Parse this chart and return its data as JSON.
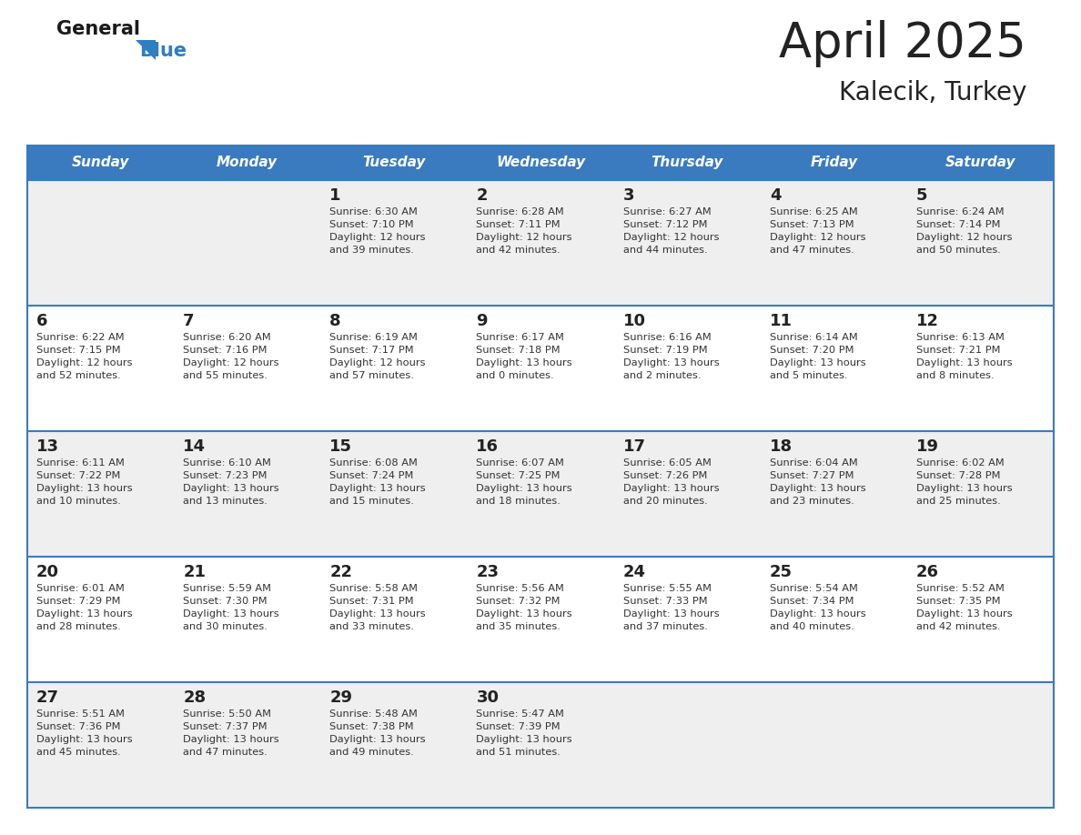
{
  "title": "April 2025",
  "subtitle": "Kalecik, Turkey",
  "header_bg": "#3a7bbf",
  "header_text": "#ffffff",
  "days_of_week": [
    "Sunday",
    "Monday",
    "Tuesday",
    "Wednesday",
    "Thursday",
    "Friday",
    "Saturday"
  ],
  "row_bg_odd": "#efefef",
  "row_bg_even": "#ffffff",
  "cell_border_color": "#3a7bbf",
  "day_num_color": "#222222",
  "info_color": "#333333",
  "logo_general_color": "#1a1a1a",
  "logo_blue_color": "#2e7fc1",
  "weeks": [
    [
      {
        "day": null,
        "info": null
      },
      {
        "day": null,
        "info": null
      },
      {
        "day": "1",
        "info": "Sunrise: 6:30 AM\nSunset: 7:10 PM\nDaylight: 12 hours\nand 39 minutes."
      },
      {
        "day": "2",
        "info": "Sunrise: 6:28 AM\nSunset: 7:11 PM\nDaylight: 12 hours\nand 42 minutes."
      },
      {
        "day": "3",
        "info": "Sunrise: 6:27 AM\nSunset: 7:12 PM\nDaylight: 12 hours\nand 44 minutes."
      },
      {
        "day": "4",
        "info": "Sunrise: 6:25 AM\nSunset: 7:13 PM\nDaylight: 12 hours\nand 47 minutes."
      },
      {
        "day": "5",
        "info": "Sunrise: 6:24 AM\nSunset: 7:14 PM\nDaylight: 12 hours\nand 50 minutes."
      }
    ],
    [
      {
        "day": "6",
        "info": "Sunrise: 6:22 AM\nSunset: 7:15 PM\nDaylight: 12 hours\nand 52 minutes."
      },
      {
        "day": "7",
        "info": "Sunrise: 6:20 AM\nSunset: 7:16 PM\nDaylight: 12 hours\nand 55 minutes."
      },
      {
        "day": "8",
        "info": "Sunrise: 6:19 AM\nSunset: 7:17 PM\nDaylight: 12 hours\nand 57 minutes."
      },
      {
        "day": "9",
        "info": "Sunrise: 6:17 AM\nSunset: 7:18 PM\nDaylight: 13 hours\nand 0 minutes."
      },
      {
        "day": "10",
        "info": "Sunrise: 6:16 AM\nSunset: 7:19 PM\nDaylight: 13 hours\nand 2 minutes."
      },
      {
        "day": "11",
        "info": "Sunrise: 6:14 AM\nSunset: 7:20 PM\nDaylight: 13 hours\nand 5 minutes."
      },
      {
        "day": "12",
        "info": "Sunrise: 6:13 AM\nSunset: 7:21 PM\nDaylight: 13 hours\nand 8 minutes."
      }
    ],
    [
      {
        "day": "13",
        "info": "Sunrise: 6:11 AM\nSunset: 7:22 PM\nDaylight: 13 hours\nand 10 minutes."
      },
      {
        "day": "14",
        "info": "Sunrise: 6:10 AM\nSunset: 7:23 PM\nDaylight: 13 hours\nand 13 minutes."
      },
      {
        "day": "15",
        "info": "Sunrise: 6:08 AM\nSunset: 7:24 PM\nDaylight: 13 hours\nand 15 minutes."
      },
      {
        "day": "16",
        "info": "Sunrise: 6:07 AM\nSunset: 7:25 PM\nDaylight: 13 hours\nand 18 minutes."
      },
      {
        "day": "17",
        "info": "Sunrise: 6:05 AM\nSunset: 7:26 PM\nDaylight: 13 hours\nand 20 minutes."
      },
      {
        "day": "18",
        "info": "Sunrise: 6:04 AM\nSunset: 7:27 PM\nDaylight: 13 hours\nand 23 minutes."
      },
      {
        "day": "19",
        "info": "Sunrise: 6:02 AM\nSunset: 7:28 PM\nDaylight: 13 hours\nand 25 minutes."
      }
    ],
    [
      {
        "day": "20",
        "info": "Sunrise: 6:01 AM\nSunset: 7:29 PM\nDaylight: 13 hours\nand 28 minutes."
      },
      {
        "day": "21",
        "info": "Sunrise: 5:59 AM\nSunset: 7:30 PM\nDaylight: 13 hours\nand 30 minutes."
      },
      {
        "day": "22",
        "info": "Sunrise: 5:58 AM\nSunset: 7:31 PM\nDaylight: 13 hours\nand 33 minutes."
      },
      {
        "day": "23",
        "info": "Sunrise: 5:56 AM\nSunset: 7:32 PM\nDaylight: 13 hours\nand 35 minutes."
      },
      {
        "day": "24",
        "info": "Sunrise: 5:55 AM\nSunset: 7:33 PM\nDaylight: 13 hours\nand 37 minutes."
      },
      {
        "day": "25",
        "info": "Sunrise: 5:54 AM\nSunset: 7:34 PM\nDaylight: 13 hours\nand 40 minutes."
      },
      {
        "day": "26",
        "info": "Sunrise: 5:52 AM\nSunset: 7:35 PM\nDaylight: 13 hours\nand 42 minutes."
      }
    ],
    [
      {
        "day": "27",
        "info": "Sunrise: 5:51 AM\nSunset: 7:36 PM\nDaylight: 13 hours\nand 45 minutes."
      },
      {
        "day": "28",
        "info": "Sunrise: 5:50 AM\nSunset: 7:37 PM\nDaylight: 13 hours\nand 47 minutes."
      },
      {
        "day": "29",
        "info": "Sunrise: 5:48 AM\nSunset: 7:38 PM\nDaylight: 13 hours\nand 49 minutes."
      },
      {
        "day": "30",
        "info": "Sunrise: 5:47 AM\nSunset: 7:39 PM\nDaylight: 13 hours\nand 51 minutes."
      },
      {
        "day": null,
        "info": null
      },
      {
        "day": null,
        "info": null
      },
      {
        "day": null,
        "info": null
      }
    ]
  ]
}
